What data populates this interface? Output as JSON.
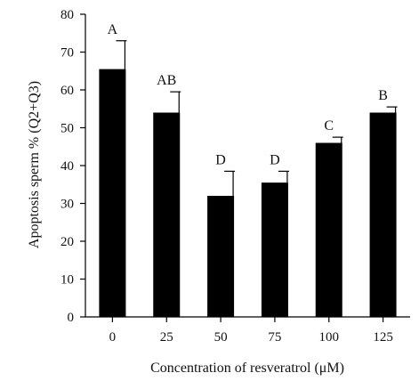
{
  "chart_data": {
    "type": "bar",
    "title": "",
    "xlabel": "Concentration of resveratrol (μM)",
    "ylabel": "Apoptosis sperm % (Q2+Q3)",
    "categories": [
      "0",
      "25",
      "50",
      "75",
      "100",
      "125"
    ],
    "values": [
      65.5,
      54,
      32,
      35.5,
      46,
      54
    ],
    "errors": [
      7.5,
      5.5,
      6.5,
      3,
      1.5,
      1.5
    ],
    "letters": [
      "A",
      "AB",
      "D",
      "D",
      "C",
      "B"
    ],
    "ylim": [
      0,
      80
    ],
    "yticks": [
      "0",
      "10",
      "20",
      "30",
      "40",
      "50",
      "60",
      "70",
      "80"
    ],
    "bar_color": "#000000",
    "grid": false,
    "legend": "none"
  }
}
